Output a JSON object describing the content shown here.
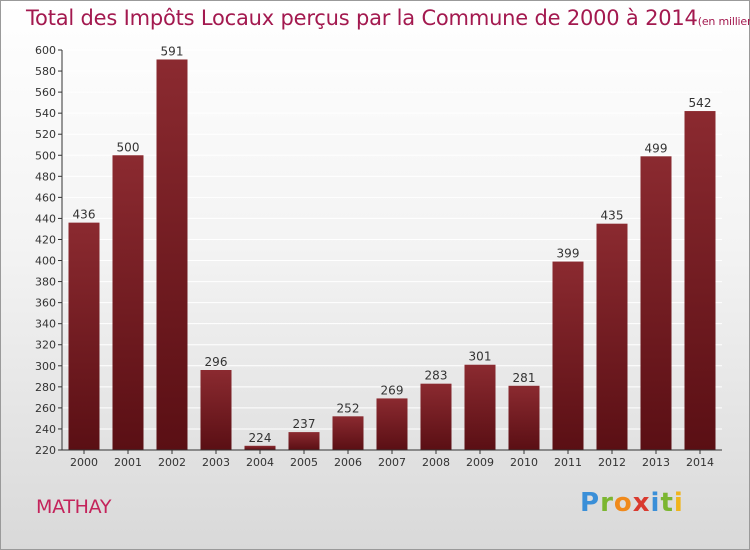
{
  "title": "Total des Impôts Locaux perçus par la Commune de 2000 à 2014",
  "title_unit": "(en milliers d'€)",
  "commune": "MATHAY",
  "logo": {
    "text": "Proxiti",
    "letters": [
      "P",
      "r",
      "o",
      "x",
      "i",
      "t",
      "i"
    ],
    "colors": [
      "#3a8fd8",
      "#7cb631",
      "#f08a1c",
      "#d93a2f",
      "#3a8fd8",
      "#7cb631",
      "#f0b41c"
    ]
  },
  "colors": {
    "bar_top": "#8b2a30",
    "bar_bottom": "#5a0f14",
    "title": "#a3194f",
    "axis": "#333333",
    "grid": "#ffffff"
  },
  "chart_data": {
    "type": "bar",
    "title": "Total des Impôts Locaux perçus par la Commune de 2000 à 2014",
    "xlabel": "",
    "ylabel": "",
    "categories": [
      "2000",
      "2001",
      "2002",
      "2003",
      "2004",
      "2005",
      "2006",
      "2007",
      "2008",
      "2009",
      "2010",
      "2011",
      "2012",
      "2013",
      "2014"
    ],
    "values": [
      436,
      500,
      591,
      296,
      224,
      237,
      252,
      269,
      283,
      301,
      281,
      399,
      435,
      499,
      542
    ],
    "ylim": [
      220,
      600
    ],
    "yticks": [
      220,
      240,
      260,
      280,
      300,
      320,
      340,
      360,
      380,
      400,
      420,
      440,
      460,
      480,
      500,
      520,
      540,
      560,
      580,
      600
    ],
    "grid": true,
    "legend": "none"
  }
}
